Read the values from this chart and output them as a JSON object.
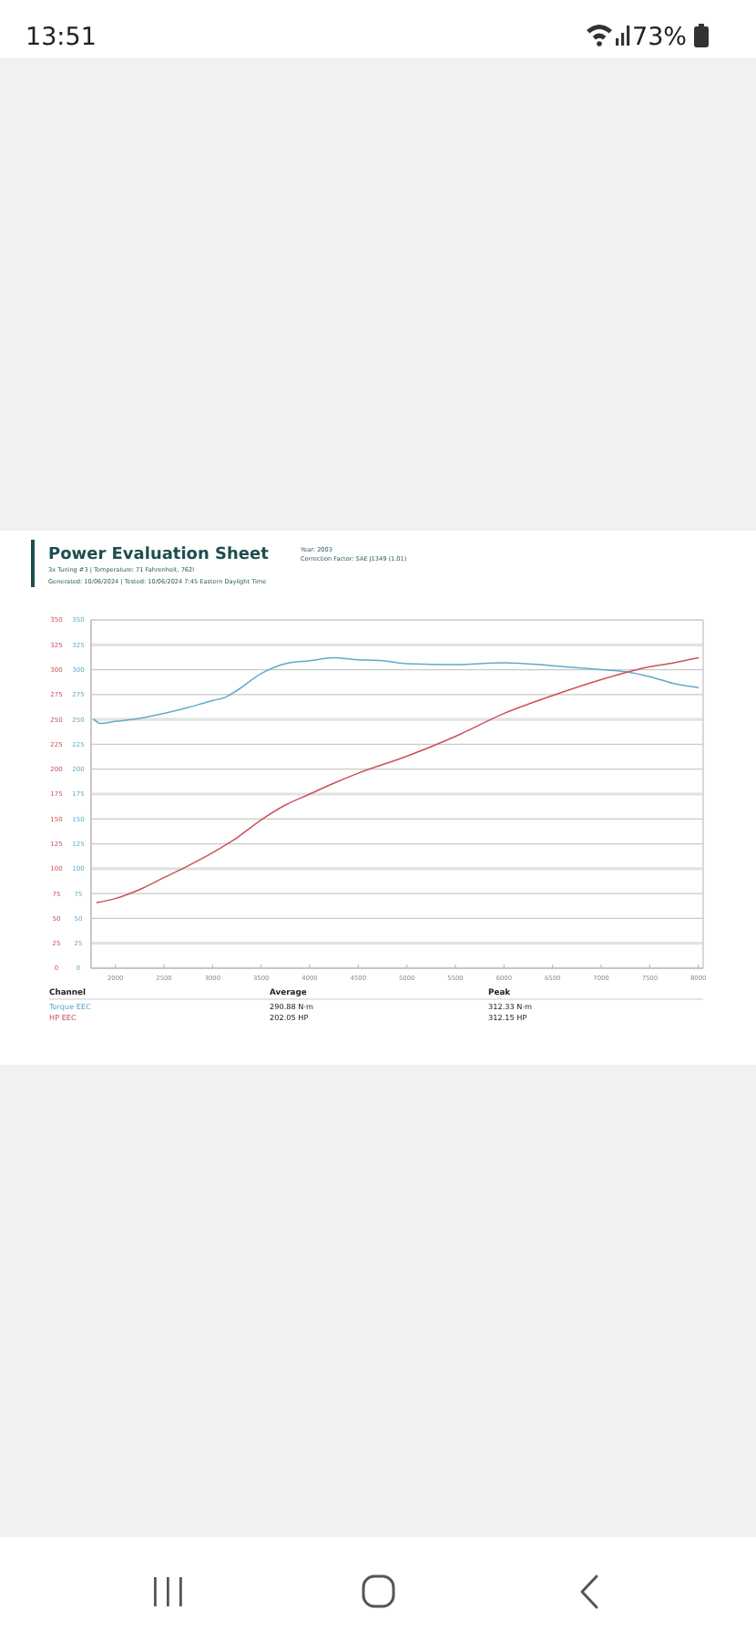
{
  "chart_data": {
    "type": "line",
    "title": "Power Evaluation Sheet",
    "subtitle": "3x Tuning #3 | Temperature: 71 Fahrenheit, 762l\nGenerated: 10/06/2024 | Tested: 10/06/2024 7:45 Eastern Daylight Time",
    "series": [
      {
        "name": "Torque EEC",
        "color": "#62a9cc",
        "axis": "y2",
        "x": [
          1780,
          1845,
          2000,
          2250,
          2500,
          2750,
          3000,
          3125,
          3250,
          3500,
          3750,
          4000,
          4250,
          4500,
          4750,
          5000,
          5500,
          6000,
          6500,
          7000,
          7250,
          7500,
          7750,
          8000
        ],
        "values": [
          250,
          246,
          248,
          251,
          256,
          262,
          269,
          272,
          279,
          296,
          306,
          309,
          312,
          310,
          309,
          306,
          305,
          307,
          304,
          300,
          298,
          293,
          286,
          282
        ]
      },
      {
        "name": "HP EEC",
        "color": "#c8525a",
        "x": [
          1810,
          2000,
          2250,
          2500,
          2750,
          3000,
          3250,
          3500,
          3750,
          4000,
          4250,
          4500,
          5000,
          5500,
          6000,
          6500,
          7000,
          7500,
          7750,
          8000
        ],
        "values": [
          66,
          70,
          79,
          91,
          103,
          116,
          131,
          149,
          164,
          175,
          186,
          196,
          213,
          233,
          256,
          274,
          290,
          303,
          307,
          312
        ]
      }
    ],
    "xlim": [
      1750,
      8050
    ],
    "xticks": [
      2000,
      2500,
      3000,
      3500,
      4000,
      4500,
      5000,
      5500,
      6000,
      6500,
      7000,
      7500,
      8000
    ],
    "ylim": [
      0,
      350
    ],
    "yticks": [
      0,
      25,
      50,
      75,
      100,
      125,
      150,
      175,
      200,
      225,
      250,
      275,
      300,
      325,
      350
    ],
    "y2lim": [
      0,
      350
    ],
    "y2ticks": [
      0,
      25,
      50,
      75,
      100,
      125,
      150,
      175,
      200,
      225,
      250,
      275,
      300,
      325,
      350
    ],
    "grid": "y",
    "legend": "bottom",
    "annotations": [
      "13:51",
      "73%",
      "Year: 2003",
      "Correction Factor: SAE J1349 (1.01)",
      "Channel",
      "Average",
      "Peak",
      "290.88 N·m",
      "312.33 N·m",
      "202.05 HP",
      "312.15 HP"
    ]
  }
}
